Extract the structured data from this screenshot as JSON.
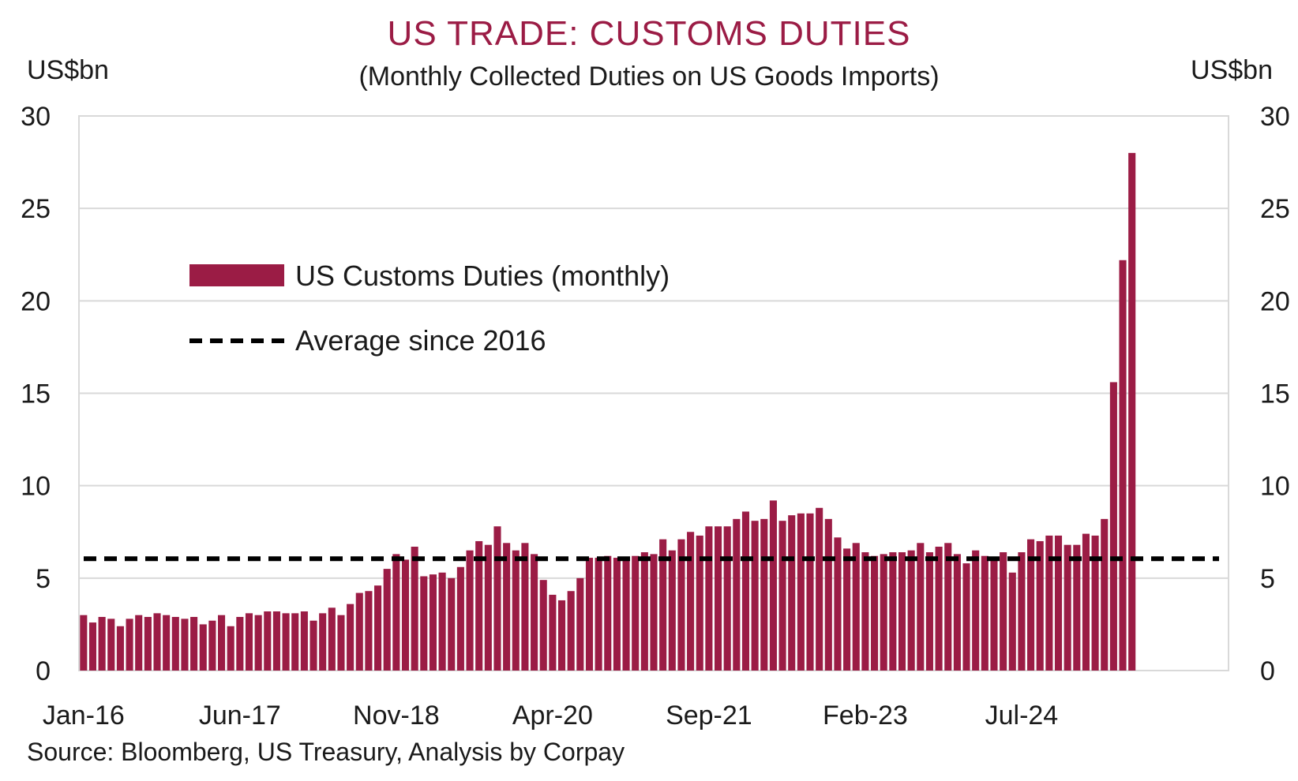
{
  "chart_data": {
    "type": "bar",
    "title": "US TRADE: CUSTOMS DUTIES",
    "subtitle": "(Monthly Collected Duties on US Goods Imports)",
    "ylabel_left": "US$bn",
    "ylabel_right": "US$bn",
    "ylim": [
      0,
      30
    ],
    "yticks": [
      0,
      5,
      10,
      15,
      20,
      25,
      30
    ],
    "x_tick_labels": [
      "Jan-16",
      "Jun-17",
      "Nov-18",
      "Apr-20",
      "Sep-21",
      "Feb-23",
      "Jul-24"
    ],
    "start_month": "Jan-16",
    "grid": true,
    "legend_placement": "upper-left inside plot",
    "source": "Source: Bloomberg, US Treasury, Analysis by Corpay",
    "series": [
      {
        "name": "US Customs Duties (monthly)",
        "type": "bar",
        "color": "#9b1c45",
        "values": [
          3.0,
          2.6,
          2.9,
          2.8,
          2.4,
          2.8,
          3.0,
          2.9,
          3.1,
          3.0,
          2.9,
          2.8,
          2.9,
          2.5,
          2.7,
          3.0,
          2.4,
          2.9,
          3.1,
          3.0,
          3.2,
          3.2,
          3.1,
          3.1,
          3.2,
          2.7,
          3.1,
          3.4,
          3.0,
          3.6,
          4.2,
          4.3,
          4.6,
          5.5,
          6.3,
          6.0,
          6.7,
          5.1,
          5.2,
          5.3,
          5.0,
          5.6,
          6.5,
          7.0,
          6.8,
          7.8,
          6.9,
          6.5,
          6.9,
          6.3,
          4.9,
          4.1,
          3.8,
          4.3,
          5.0,
          6.1,
          6.1,
          6.2,
          6.1,
          6.1,
          6.2,
          6.4,
          6.3,
          7.1,
          6.5,
          7.1,
          7.5,
          7.3,
          7.8,
          7.8,
          7.8,
          8.2,
          8.6,
          8.1,
          8.2,
          9.2,
          8.1,
          8.4,
          8.5,
          8.5,
          8.8,
          8.2,
          7.2,
          6.6,
          6.9,
          6.4,
          6.2,
          6.3,
          6.4,
          6.4,
          6.5,
          6.9,
          6.4,
          6.7,
          6.9,
          6.3,
          5.8,
          6.5,
          6.2,
          6.1,
          6.4,
          5.3,
          6.4,
          7.1,
          7.0,
          7.3,
          7.3,
          6.8,
          6.8,
          7.4,
          7.3,
          8.2,
          15.6,
          22.2,
          28.0
        ]
      },
      {
        "name": "Average since 2016",
        "type": "dashed-line",
        "color": "#000000",
        "value": 6.05
      }
    ]
  }
}
